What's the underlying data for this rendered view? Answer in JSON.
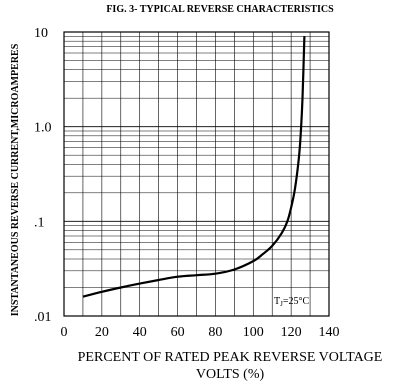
{
  "chart_data": {
    "type": "line",
    "title": "FIG. 3- TYPICAL REVERSE CHARACTERISTICS",
    "xlabel_line1": "PERCENT OF RATED PEAK REVERSE VOLTAGE",
    "xlabel_line2": "VOLTS (%)",
    "ylabel": "INSTANTANEOUS REVERSE CURRENT,MICROAMPERES",
    "xlim": [
      0,
      140
    ],
    "ylim": [
      0.01,
      10
    ],
    "yscale": "log",
    "grid": true,
    "x_ticks": [
      "0",
      "20",
      "40",
      "60",
      "80",
      "100",
      "120",
      "140"
    ],
    "y_ticks": [
      "10",
      "1.0",
      ".1",
      ".01"
    ],
    "annotation": "T",
    "annotation_sub": "J",
    "annotation_rest": "=25°C",
    "series": [
      {
        "x": [
          10,
          20,
          30,
          40,
          50,
          60,
          70,
          80,
          90,
          100,
          105,
          110,
          115,
          118,
          120,
          122,
          124,
          125,
          126,
          127
        ],
        "y": [
          0.016,
          0.018,
          0.02,
          0.022,
          0.024,
          0.026,
          0.027,
          0.028,
          0.031,
          0.038,
          0.045,
          0.055,
          0.075,
          0.1,
          0.14,
          0.22,
          0.45,
          0.8,
          2.0,
          9.0
        ]
      }
    ]
  }
}
